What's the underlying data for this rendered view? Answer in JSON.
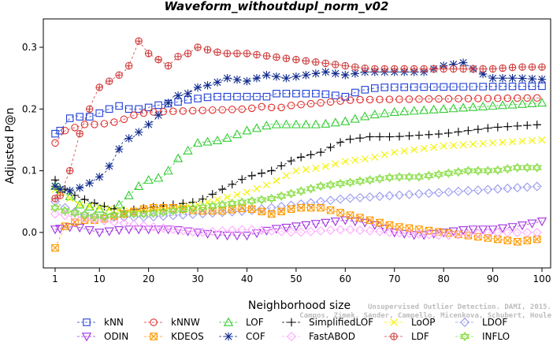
{
  "chart_data": {
    "type": "line",
    "title": "Waveform_withoutdupl_norm_v02",
    "xlabel": "Neighborhood size",
    "ylabel": "Adjusted P@n",
    "xlim": [
      1,
      100
    ],
    "ylim": [
      -0.04,
      0.34
    ],
    "x_ticks": [
      1,
      10,
      20,
      30,
      40,
      50,
      60,
      70,
      80,
      90,
      100
    ],
    "y_ticks": [
      0.0,
      0.1,
      0.2,
      0.3
    ],
    "y_tick_labels": [
      "0.0",
      "0.1",
      "0.2",
      "0.3"
    ],
    "legend_position": "bottom",
    "watermark": [
      "Unsupervised Outlier Detection. DAMI, 2015.",
      "Campos, Zimek, Sander, Campello, Micenkova, Schubert, Houle"
    ],
    "series": [
      {
        "name": "kNN",
        "color": "#1f3fd6",
        "marker": "square",
        "keypoints": [
          [
            1,
            0.16
          ],
          [
            2,
            0.165
          ],
          [
            3,
            0.175
          ],
          [
            4,
            0.185
          ],
          [
            5,
            0.19
          ],
          [
            7,
            0.185
          ],
          [
            9,
            0.19
          ],
          [
            12,
            0.2
          ],
          [
            14,
            0.205
          ],
          [
            16,
            0.2
          ],
          [
            19,
            0.2
          ],
          [
            21,
            0.205
          ],
          [
            25,
            0.21
          ],
          [
            28,
            0.215
          ],
          [
            33,
            0.22
          ],
          [
            44,
            0.22
          ],
          [
            46,
            0.225
          ],
          [
            55,
            0.225
          ],
          [
            60,
            0.22
          ],
          [
            63,
            0.23
          ],
          [
            67,
            0.235
          ],
          [
            100,
            0.237
          ]
        ]
      },
      {
        "name": "kNNW",
        "color": "#e03030",
        "marker": "circle",
        "keypoints": [
          [
            1,
            0.145
          ],
          [
            2,
            0.155
          ],
          [
            3,
            0.165
          ],
          [
            5,
            0.17
          ],
          [
            7,
            0.175
          ],
          [
            10,
            0.175
          ],
          [
            14,
            0.18
          ],
          [
            17,
            0.19
          ],
          [
            20,
            0.195
          ],
          [
            40,
            0.2
          ],
          [
            44,
            0.205
          ],
          [
            46,
            0.2
          ],
          [
            48,
            0.205
          ],
          [
            55,
            0.21
          ],
          [
            62,
            0.215
          ],
          [
            100,
            0.218
          ]
        ]
      },
      {
        "name": "LOF",
        "color": "#33cc33",
        "marker": "triangle-up",
        "keypoints": [
          [
            1,
            0.075
          ],
          [
            3,
            0.065
          ],
          [
            6,
            0.045
          ],
          [
            9,
            0.04
          ],
          [
            12,
            0.035
          ],
          [
            14,
            0.045
          ],
          [
            16,
            0.06
          ],
          [
            18,
            0.075
          ],
          [
            20,
            0.085
          ],
          [
            23,
            0.09
          ],
          [
            26,
            0.12
          ],
          [
            30,
            0.145
          ],
          [
            35,
            0.15
          ],
          [
            40,
            0.165
          ],
          [
            45,
            0.175
          ],
          [
            55,
            0.175
          ],
          [
            60,
            0.18
          ],
          [
            65,
            0.19
          ],
          [
            70,
            0.195
          ],
          [
            80,
            0.2
          ],
          [
            90,
            0.205
          ],
          [
            100,
            0.21
          ]
        ]
      },
      {
        "name": "SimplifiedLOF",
        "color": "#000000",
        "marker": "plus",
        "keypoints": [
          [
            1,
            0.085
          ],
          [
            3,
            0.07
          ],
          [
            5,
            0.06
          ],
          [
            8,
            0.05
          ],
          [
            10,
            0.045
          ],
          [
            12,
            0.04
          ],
          [
            15,
            0.035
          ],
          [
            20,
            0.04
          ],
          [
            25,
            0.045
          ],
          [
            30,
            0.05
          ],
          [
            35,
            0.07
          ],
          [
            40,
            0.09
          ],
          [
            45,
            0.1
          ],
          [
            50,
            0.12
          ],
          [
            55,
            0.13
          ],
          [
            60,
            0.15
          ],
          [
            65,
            0.155
          ],
          [
            70,
            0.155
          ],
          [
            80,
            0.16
          ],
          [
            85,
            0.165
          ],
          [
            90,
            0.17
          ],
          [
            100,
            0.175
          ]
        ]
      },
      {
        "name": "LoOP",
        "color": "#f2f200",
        "marker": "x",
        "keypoints": [
          [
            1,
            0.07
          ],
          [
            3,
            0.06
          ],
          [
            6,
            0.045
          ],
          [
            10,
            0.04
          ],
          [
            15,
            0.035
          ],
          [
            20,
            0.035
          ],
          [
            25,
            0.04
          ],
          [
            30,
            0.045
          ],
          [
            35,
            0.055
          ],
          [
            40,
            0.065
          ],
          [
            45,
            0.08
          ],
          [
            50,
            0.1
          ],
          [
            55,
            0.105
          ],
          [
            60,
            0.115
          ],
          [
            65,
            0.12
          ],
          [
            70,
            0.13
          ],
          [
            80,
            0.14
          ],
          [
            90,
            0.145
          ],
          [
            100,
            0.15
          ]
        ]
      },
      {
        "name": "LDOF",
        "color": "#9999ee",
        "marker": "diamond",
        "keypoints": [
          [
            1,
            0.05
          ],
          [
            3,
            0.04
          ],
          [
            6,
            0.03
          ],
          [
            10,
            0.025
          ],
          [
            20,
            0.025
          ],
          [
            30,
            0.03
          ],
          [
            40,
            0.035
          ],
          [
            50,
            0.045
          ],
          [
            60,
            0.055
          ],
          [
            70,
            0.06
          ],
          [
            80,
            0.065
          ],
          [
            90,
            0.07
          ],
          [
            100,
            0.075
          ]
        ]
      },
      {
        "name": "ODIN",
        "color": "#a030e0",
        "marker": "triangle-down",
        "keypoints": [
          [
            1,
            0.005
          ],
          [
            5,
            0.01
          ],
          [
            10,
            0.0
          ],
          [
            15,
            0.005
          ],
          [
            20,
            0.005
          ],
          [
            25,
            0.005
          ],
          [
            30,
            0.0
          ],
          [
            35,
            -0.005
          ],
          [
            40,
            -0.005
          ],
          [
            45,
            0.005
          ],
          [
            50,
            0.01
          ],
          [
            55,
            0.015
          ],
          [
            60,
            0.02
          ],
          [
            65,
            0.015
          ],
          [
            70,
            0.0
          ],
          [
            75,
            -0.005
          ],
          [
            80,
            0.0
          ],
          [
            85,
            0.005
          ],
          [
            90,
            0.005
          ],
          [
            95,
            0.01
          ],
          [
            100,
            0.018
          ]
        ]
      },
      {
        "name": "KDEOS",
        "color": "#ff9900",
        "marker": "square-x",
        "keypoints": [
          [
            1,
            -0.025
          ],
          [
            3,
            0.01
          ],
          [
            6,
            0.02
          ],
          [
            10,
            0.02
          ],
          [
            15,
            0.03
          ],
          [
            20,
            0.04
          ],
          [
            25,
            0.04
          ],
          [
            30,
            0.035
          ],
          [
            35,
            0.035
          ],
          [
            40,
            0.04
          ],
          [
            45,
            0.03
          ],
          [
            50,
            0.04
          ],
          [
            55,
            0.04
          ],
          [
            60,
            0.03
          ],
          [
            65,
            0.02
          ],
          [
            70,
            0.01
          ],
          [
            75,
            0.005
          ],
          [
            80,
            0.0
          ],
          [
            85,
            -0.005
          ],
          [
            90,
            -0.01
          ],
          [
            95,
            -0.015
          ],
          [
            100,
            -0.01
          ]
        ]
      },
      {
        "name": "COF",
        "color": "#102a8c",
        "marker": "asterisk",
        "keypoints": [
          [
            1,
            0.075
          ],
          [
            3,
            0.065
          ],
          [
            5,
            0.07
          ],
          [
            7,
            0.075
          ],
          [
            9,
            0.085
          ],
          [
            11,
            0.095
          ],
          [
            13,
            0.12
          ],
          [
            15,
            0.15
          ],
          [
            17,
            0.155
          ],
          [
            19,
            0.17
          ],
          [
            21,
            0.18
          ],
          [
            23,
            0.2
          ],
          [
            25,
            0.22
          ],
          [
            28,
            0.225
          ],
          [
            30,
            0.235
          ],
          [
            33,
            0.24
          ],
          [
            36,
            0.25
          ],
          [
            40,
            0.245
          ],
          [
            44,
            0.255
          ],
          [
            48,
            0.25
          ],
          [
            52,
            0.255
          ],
          [
            56,
            0.26
          ],
          [
            60,
            0.255
          ],
          [
            64,
            0.26
          ],
          [
            70,
            0.26
          ],
          [
            76,
            0.26
          ],
          [
            80,
            0.27
          ],
          [
            84,
            0.275
          ],
          [
            87,
            0.26
          ],
          [
            90,
            0.25
          ],
          [
            95,
            0.25
          ],
          [
            100,
            0.248
          ]
        ]
      },
      {
        "name": "FastABOD",
        "color": "#ffaaff",
        "marker": "diamond",
        "keypoints": [
          [
            1,
            0.03
          ],
          [
            5,
            0.025
          ],
          [
            10,
            0.02
          ],
          [
            20,
            0.01
          ],
          [
            30,
            0.0
          ],
          [
            40,
            0.005
          ],
          [
            50,
            0.0
          ],
          [
            60,
            0.005
          ],
          [
            70,
            0.0
          ],
          [
            80,
            -0.005
          ],
          [
            90,
            0.0
          ],
          [
            100,
            0.0
          ]
        ]
      },
      {
        "name": "LDF",
        "color": "#d04040",
        "marker": "circle-plus",
        "keypoints": [
          [
            1,
            0.055
          ],
          [
            2,
            0.06
          ],
          [
            3,
            0.08
          ],
          [
            4,
            0.1
          ],
          [
            5,
            0.13
          ],
          [
            6,
            0.16
          ],
          [
            7,
            0.18
          ],
          [
            8,
            0.2
          ],
          [
            9,
            0.22
          ],
          [
            10,
            0.235
          ],
          [
            11,
            0.24
          ],
          [
            12,
            0.245
          ],
          [
            13,
            0.25
          ],
          [
            14,
            0.255
          ],
          [
            15,
            0.26
          ],
          [
            16,
            0.27
          ],
          [
            17,
            0.29
          ],
          [
            18,
            0.31
          ],
          [
            19,
            0.3
          ],
          [
            20,
            0.29
          ],
          [
            22,
            0.28
          ],
          [
            24,
            0.27
          ],
          [
            26,
            0.285
          ],
          [
            28,
            0.29
          ],
          [
            30,
            0.3
          ],
          [
            35,
            0.29
          ],
          [
            40,
            0.29
          ],
          [
            45,
            0.285
          ],
          [
            50,
            0.28
          ],
          [
            55,
            0.275
          ],
          [
            60,
            0.27
          ],
          [
            65,
            0.265
          ],
          [
            70,
            0.265
          ],
          [
            75,
            0.265
          ],
          [
            80,
            0.265
          ],
          [
            85,
            0.265
          ],
          [
            90,
            0.265
          ],
          [
            95,
            0.268
          ],
          [
            100,
            0.268
          ]
        ]
      },
      {
        "name": "INFLO",
        "color": "#88dd44",
        "marker": "star-of-david",
        "keypoints": [
          [
            1,
            0.04
          ],
          [
            3,
            0.035
          ],
          [
            6,
            0.03
          ],
          [
            10,
            0.025
          ],
          [
            15,
            0.03
          ],
          [
            20,
            0.03
          ],
          [
            25,
            0.035
          ],
          [
            30,
            0.04
          ],
          [
            35,
            0.045
          ],
          [
            40,
            0.05
          ],
          [
            45,
            0.055
          ],
          [
            50,
            0.065
          ],
          [
            55,
            0.075
          ],
          [
            60,
            0.08
          ],
          [
            65,
            0.085
          ],
          [
            70,
            0.09
          ],
          [
            75,
            0.09
          ],
          [
            80,
            0.095
          ],
          [
            85,
            0.1
          ],
          [
            90,
            0.1
          ],
          [
            95,
            0.105
          ],
          [
            100,
            0.105
          ]
        ]
      }
    ]
  }
}
